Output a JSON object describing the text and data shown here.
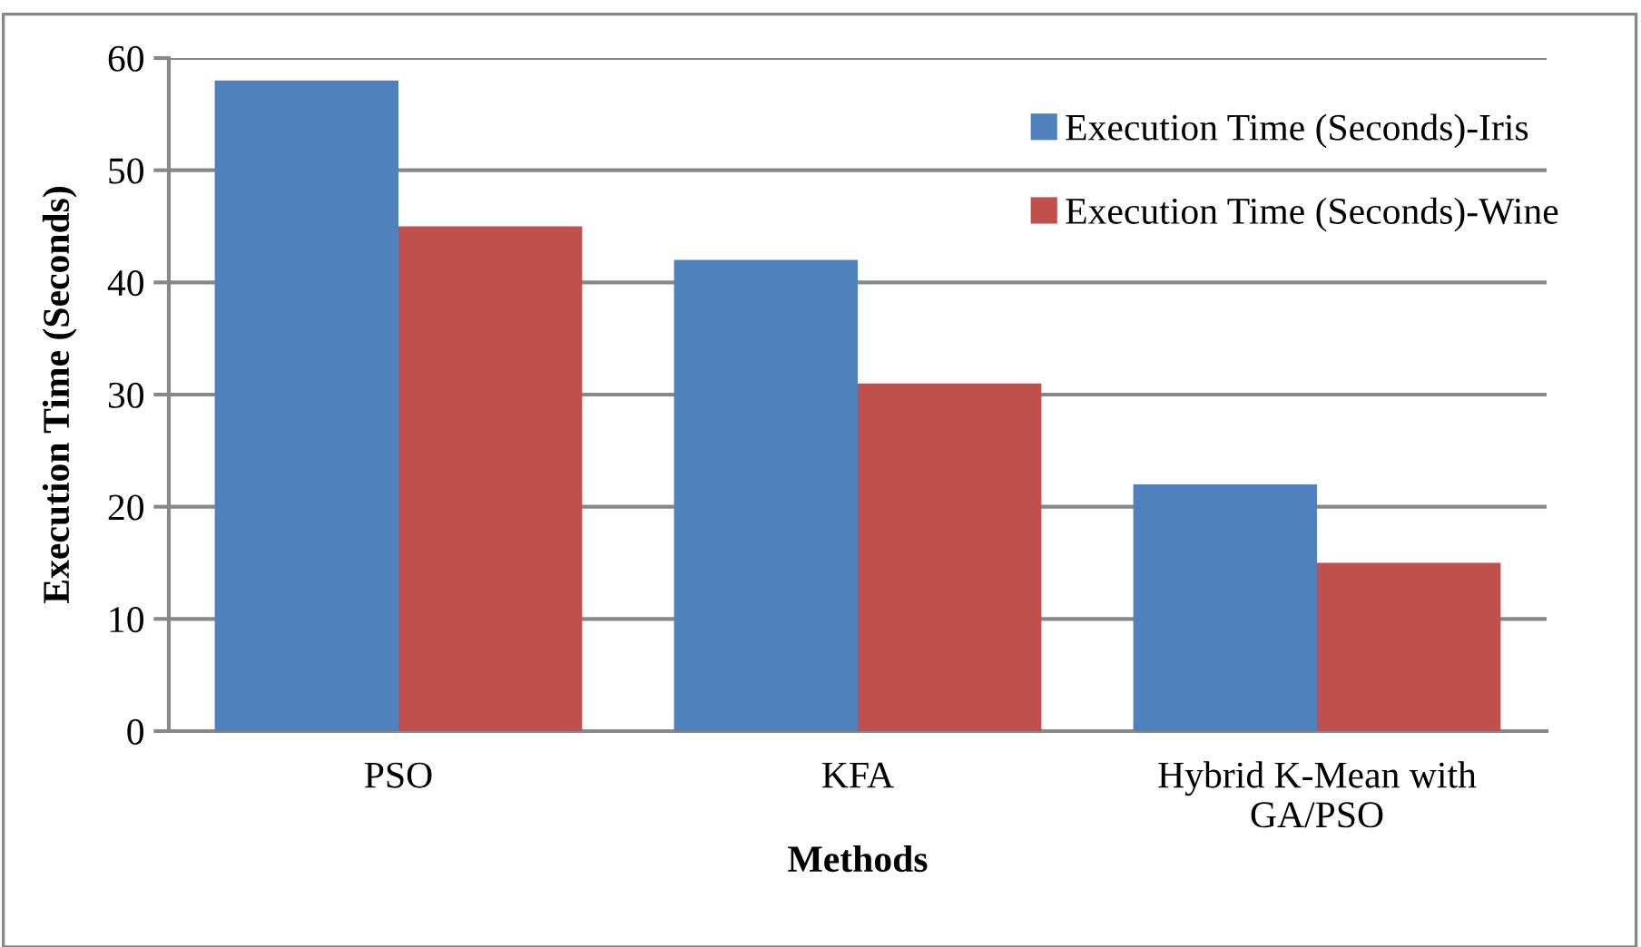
{
  "chart_data": {
    "type": "bar",
    "xlabel": "Methods",
    "ylabel": "Execution Time (Seconds)",
    "categories": [
      "PSO",
      "KFA",
      "Hybrid K-Mean with\nGA/PSO"
    ],
    "series": [
      {
        "name": "Execution Time (Seconds)-Iris",
        "color": "#4f81bd",
        "values": [
          58,
          42,
          22
        ]
      },
      {
        "name": "Execution Time (Seconds)-Wine",
        "color": "#c0504d",
        "values": [
          45,
          31,
          15
        ]
      }
    ],
    "ylim": [
      0,
      60
    ],
    "yticks": [
      0,
      10,
      20,
      30,
      40,
      50,
      60
    ],
    "grid": "y",
    "legend": "top right"
  }
}
